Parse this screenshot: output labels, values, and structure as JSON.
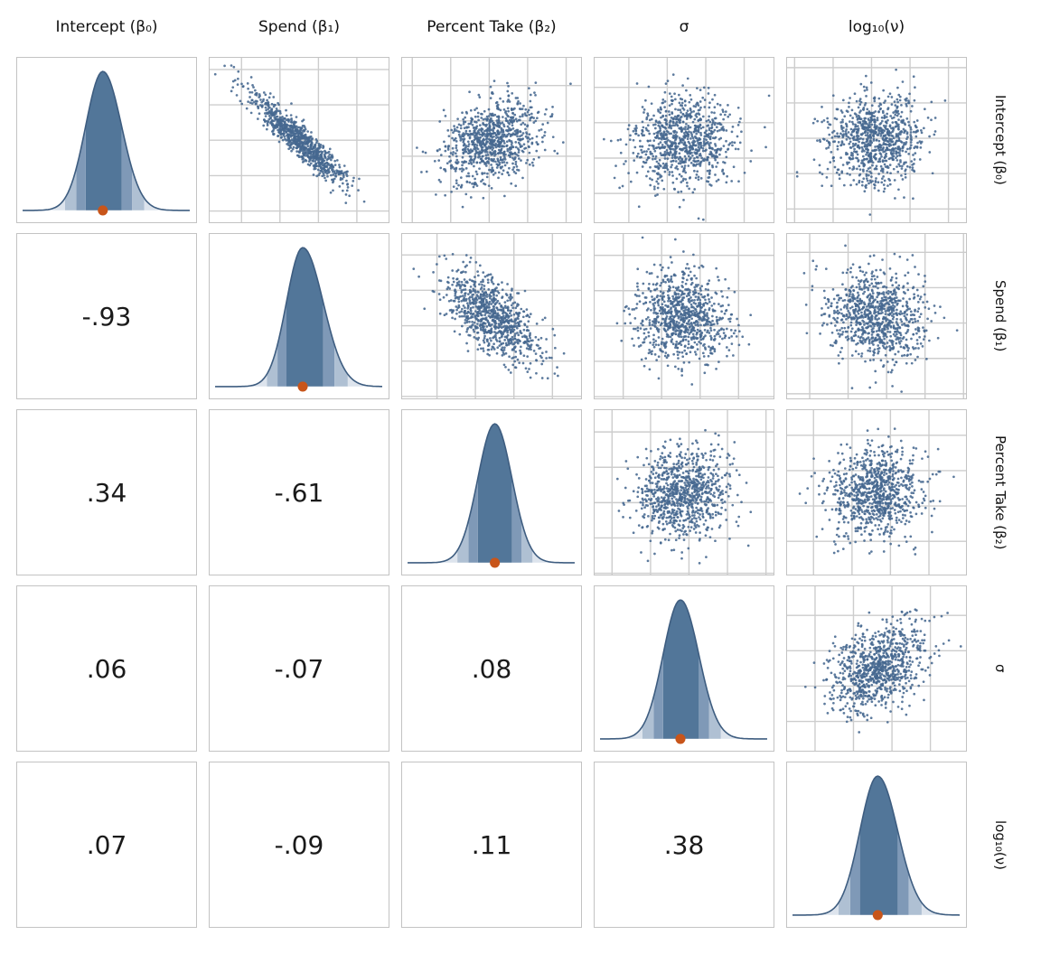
{
  "chart_data": {
    "type": "scatter",
    "subtype": "pairs_matrix",
    "title": "",
    "variables": [
      "Intercept (β₀)",
      "Spend (β₁)",
      "Percent Take (β₂)",
      "σ",
      "log₁₀(ν)"
    ],
    "diagonal_panels": "posterior density with quantile shading and median point",
    "upper_triangle_panels": "scatter of posterior draws",
    "lower_triangle_panels": "pearson correlation value",
    "grid": true,
    "legend": "none",
    "correlations": [
      [
        1.0,
        -0.93,
        0.34,
        0.06,
        0.07
      ],
      [
        -0.93,
        1.0,
        -0.61,
        -0.07,
        -0.09
      ],
      [
        0.34,
        -0.61,
        1.0,
        0.08,
        0.11
      ],
      [
        0.06,
        -0.07,
        0.08,
        1.0,
        0.38
      ],
      [
        0.07,
        -0.09,
        0.11,
        0.38,
        1.0
      ]
    ],
    "correlation_display": {
      "r2c1": "-.93",
      "r3c1": ".34",
      "r3c2": "-.61",
      "r4c1": ".06",
      "r4c2": "-.07",
      "r4c3": ".08",
      "r5c1": ".07",
      "r5c2": "-.09",
      "r5c3": ".11",
      "r5c4": ".38"
    }
  },
  "colors": {
    "scatter_point": "#45688f",
    "density_dark": "#527699",
    "density_mid": "#7f99b7",
    "density_light": "#afc0d3",
    "density_pale": "#dde4ed",
    "density_outline": "#3e5d80",
    "median_dot": "#c8551a",
    "grid_line": "#cdcdcd",
    "panel_border": "#c3c3c3",
    "background": "#ffffff",
    "text": "#111111"
  }
}
